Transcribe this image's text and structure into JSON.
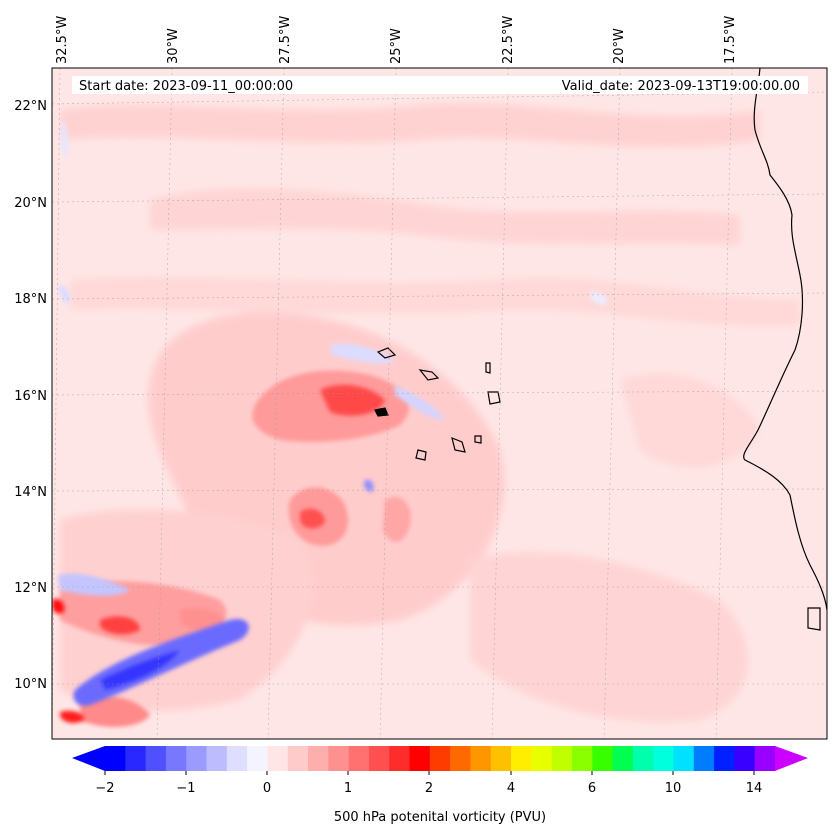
{
  "header": {
    "start_date": "Start date: 2023-09-11_00:00:00",
    "valid_date": "Valid_date: 2023-09-13T19:00:00.00"
  },
  "longitude_labels": [
    "32.5°W",
    "30°W",
    "27.5°W",
    "25°W",
    "22.5°W",
    "20°W",
    "17.5°W"
  ],
  "latitude_labels": [
    "22°N",
    "20°N",
    "18°N",
    "16°N",
    "14°N",
    "12°N",
    "10°N"
  ],
  "colorbar": {
    "label": "500 hPa potenital vorticity (PVU)",
    "tick_labels": [
      "−2",
      "−1",
      "0",
      "1",
      "2",
      "4",
      "6",
      "10",
      "14"
    ],
    "colors": [
      "#0000ff",
      "#2828ff",
      "#5050ff",
      "#7878ff",
      "#9a9aff",
      "#bcbcff",
      "#dedeff",
      "#f4f4ff",
      "#ffe6e6",
      "#ffcaca",
      "#ffaeae",
      "#ff9090",
      "#ff7070",
      "#ff5050",
      "#ff2c2c",
      "#ff0000",
      "#ff3c00",
      "#ff6a00",
      "#ff9600",
      "#ffc000",
      "#ffee00",
      "#e8ff00",
      "#bfff00",
      "#8aff00",
      "#38ff00",
      "#00ff50",
      "#00ffaa",
      "#00ffdd",
      "#00e0ff",
      "#007cff",
      "#0020ff",
      "#3a00ff",
      "#9a00ff"
    ],
    "extend_min_color": "#0000ff",
    "extend_max_color": "#cc00ff"
  },
  "colors": {
    "background_field": "#ffe4e4",
    "coastline": "#000000"
  }
}
